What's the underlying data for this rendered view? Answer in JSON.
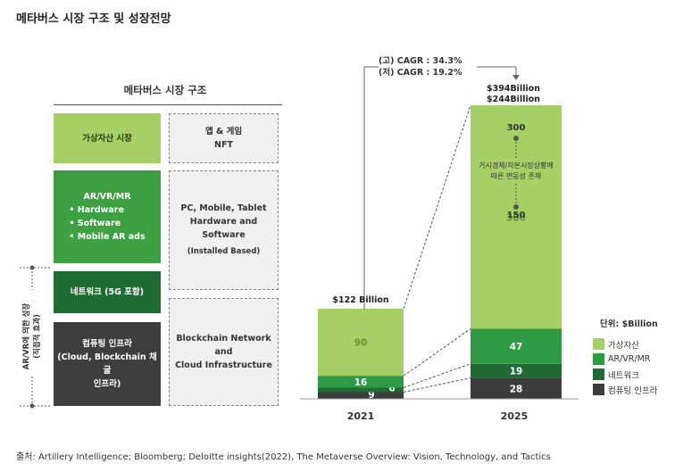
{
  "title": "메타버스 시장 구조 및 성장전망",
  "structure": {
    "title": "메타버스 시장 구조",
    "left_boxes": {
      "virtual_assets": "가상자산 시장",
      "ar_vr": {
        "title": "AR/VR/MR",
        "items": [
          "• Hardware",
          "• Software",
          "• Mobile AR ads"
        ]
      },
      "network": "네트워크 (5G 포함)",
      "computing": [
        "컴퓨팅 인프라",
        "(Cloud, Blockchain 채굴",
        "인프라)"
      ]
    },
    "right_boxes": {
      "apps": [
        "앱 & 게임",
        "NFT"
      ],
      "devices": [
        "PC, Mobile, Tablet",
        "Hardware and Software",
        "(Installed Based)"
      ],
      "blockchain": [
        "Blockchain Network and",
        "Cloud Infrastructure"
      ]
    },
    "side_label": [
      "AR/VR에 의한 성장",
      "(직접적 효과)"
    ]
  },
  "cagr": {
    "high": "(고) CAGR : 34.3%",
    "low": "(저) CAGR : 19.2%"
  },
  "chart_data": {
    "type": "bar",
    "stacked": true,
    "categories": [
      "2021",
      "2025"
    ],
    "series": [
      {
        "name": "컴퓨팅 인프라",
        "values": [
          9,
          28
        ],
        "color": "#3c3c3c"
      },
      {
        "name": "네트워크",
        "values": [
          6,
          19
        ],
        "color": "#1e6b33"
      },
      {
        "name": "AR/VR/MR",
        "values": [
          16,
          47
        ],
        "color": "#2e9a44"
      },
      {
        "name": "가상자산",
        "values": [
          90,
          300
        ],
        "color": "#a6cf66"
      }
    ],
    "totals": [
      "$122 Billion",
      "$394Billion",
      "$244Billion"
    ],
    "annotations": {
      "high_value": "300",
      "low_value": "150",
      "note": [
        "거시경제/자본시장상황에",
        "따른 변동성 존재"
      ]
    },
    "legend_title": "단위: $Billion",
    "legend": [
      "가상자산",
      "AR/VR/MR",
      "네트워크",
      "컴퓨팅 인프라"
    ]
  },
  "source": "출처: Artillery Intelligence; Bloomberg; Deloitte insights(2022), The Metaverse Overview: Vision, Technology, and Tactics"
}
